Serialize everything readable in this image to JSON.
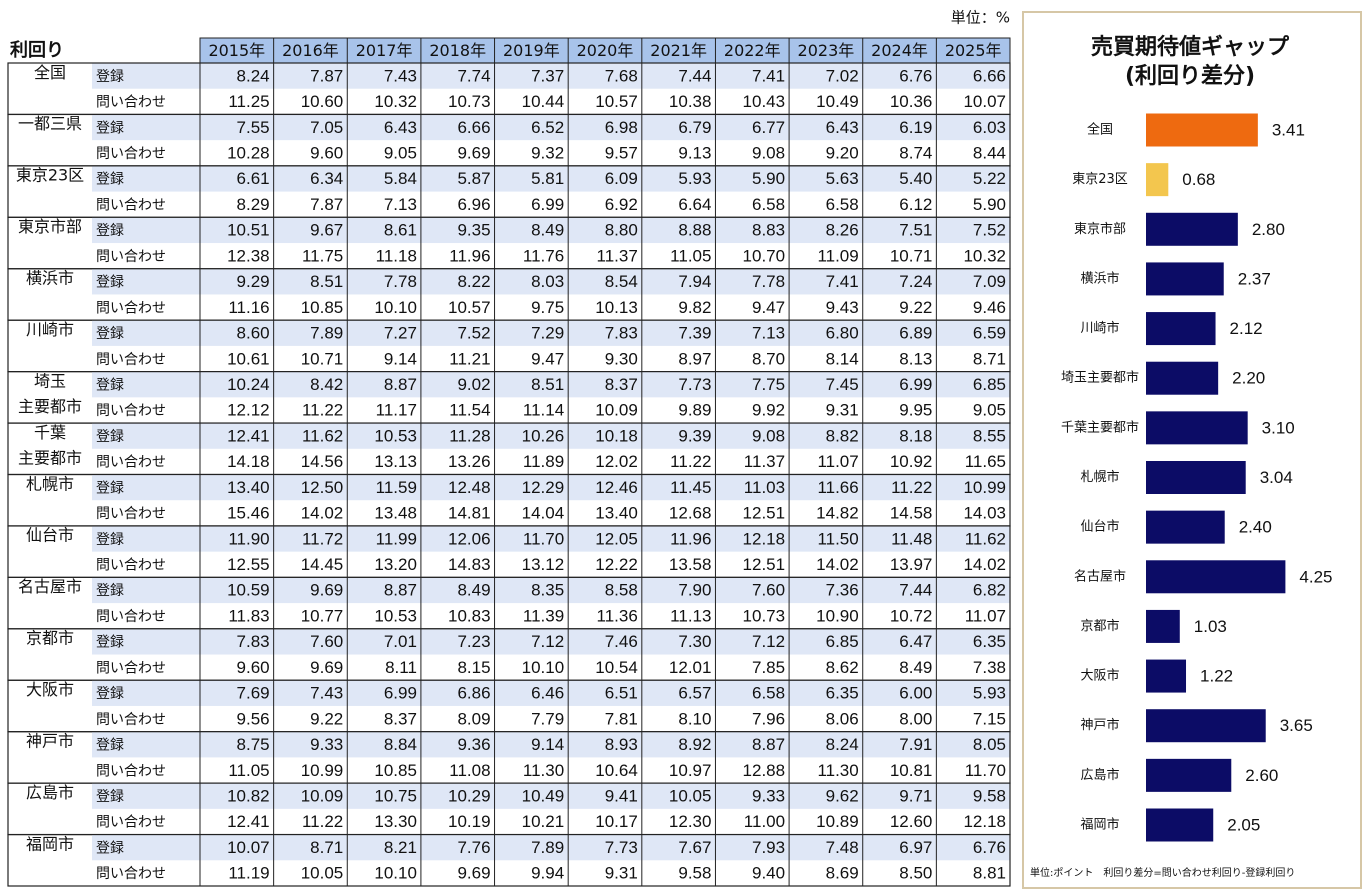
{
  "table": {
    "unit": "単位：%",
    "corner": "利回り",
    "years": [
      "2015年",
      "2016年",
      "2017年",
      "2018年",
      "2019年",
      "2020年",
      "2021年",
      "2022年",
      "2023年",
      "2024年",
      "2025年"
    ],
    "row_labels": [
      "登録",
      "問い合わせ"
    ],
    "regions": [
      {
        "name": [
          "全国"
        ],
        "registered": [
          "8.24",
          "7.87",
          "7.43",
          "7.74",
          "7.37",
          "7.68",
          "7.44",
          "7.41",
          "7.02",
          "6.76",
          "6.66"
        ],
        "inquiry": [
          "11.25",
          "10.60",
          "10.32",
          "10.73",
          "10.44",
          "10.57",
          "10.38",
          "10.43",
          "10.49",
          "10.36",
          "10.07"
        ]
      },
      {
        "name": [
          "一都三県"
        ],
        "registered": [
          "7.55",
          "7.05",
          "6.43",
          "6.66",
          "6.52",
          "6.98",
          "6.79",
          "6.77",
          "6.43",
          "6.19",
          "6.03"
        ],
        "inquiry": [
          "10.28",
          "9.60",
          "9.05",
          "9.69",
          "9.32",
          "9.57",
          "9.13",
          "9.08",
          "9.20",
          "8.74",
          "8.44"
        ]
      },
      {
        "name": [
          "東京23区"
        ],
        "registered": [
          "6.61",
          "6.34",
          "5.84",
          "5.87",
          "5.81",
          "6.09",
          "5.93",
          "5.90",
          "5.63",
          "5.40",
          "5.22"
        ],
        "inquiry": [
          "8.29",
          "7.87",
          "7.13",
          "6.96",
          "6.99",
          "6.92",
          "6.64",
          "6.58",
          "6.58",
          "6.12",
          "5.90"
        ]
      },
      {
        "name": [
          "東京市部"
        ],
        "registered": [
          "10.51",
          "9.67",
          "8.61",
          "9.35",
          "8.49",
          "8.80",
          "8.88",
          "8.83",
          "8.26",
          "7.51",
          "7.52"
        ],
        "inquiry": [
          "12.38",
          "11.75",
          "11.18",
          "11.96",
          "11.76",
          "11.37",
          "11.05",
          "10.70",
          "11.09",
          "10.71",
          "10.32"
        ]
      },
      {
        "name": [
          "横浜市"
        ],
        "registered": [
          "9.29",
          "8.51",
          "7.78",
          "8.22",
          "8.03",
          "8.54",
          "7.94",
          "7.78",
          "7.41",
          "7.24",
          "7.09"
        ],
        "inquiry": [
          "11.16",
          "10.85",
          "10.10",
          "10.57",
          "9.75",
          "10.13",
          "9.82",
          "9.47",
          "9.43",
          "9.22",
          "9.46"
        ]
      },
      {
        "name": [
          "川崎市"
        ],
        "registered": [
          "8.60",
          "7.89",
          "7.27",
          "7.52",
          "7.29",
          "7.83",
          "7.39",
          "7.13",
          "6.80",
          "6.89",
          "6.59"
        ],
        "inquiry": [
          "10.61",
          "10.71",
          "9.14",
          "11.21",
          "9.47",
          "9.30",
          "8.97",
          "8.70",
          "8.14",
          "8.13",
          "8.71"
        ]
      },
      {
        "name": [
          "埼玉",
          "主要都市"
        ],
        "registered": [
          "10.24",
          "8.42",
          "8.87",
          "9.02",
          "8.51",
          "8.37",
          "7.73",
          "7.75",
          "7.45",
          "6.99",
          "6.85"
        ],
        "inquiry": [
          "12.12",
          "11.22",
          "11.17",
          "11.54",
          "11.14",
          "10.09",
          "9.89",
          "9.92",
          "9.31",
          "9.95",
          "9.05"
        ]
      },
      {
        "name": [
          "千葉",
          "主要都市"
        ],
        "registered": [
          "12.41",
          "11.62",
          "10.53",
          "11.28",
          "10.26",
          "10.18",
          "9.39",
          "9.08",
          "8.82",
          "8.18",
          "8.55"
        ],
        "inquiry": [
          "14.18",
          "14.56",
          "13.13",
          "13.26",
          "11.89",
          "12.02",
          "11.22",
          "11.37",
          "11.07",
          "10.92",
          "11.65"
        ]
      },
      {
        "name": [
          "札幌市"
        ],
        "registered": [
          "13.40",
          "12.50",
          "11.59",
          "12.48",
          "12.29",
          "12.46",
          "11.45",
          "11.03",
          "11.66",
          "11.22",
          "10.99"
        ],
        "inquiry": [
          "15.46",
          "14.02",
          "13.48",
          "14.81",
          "14.04",
          "13.40",
          "12.68",
          "12.51",
          "14.82",
          "14.58",
          "14.03"
        ]
      },
      {
        "name": [
          "仙台市"
        ],
        "registered": [
          "11.90",
          "11.72",
          "11.99",
          "12.06",
          "11.70",
          "12.05",
          "11.96",
          "12.18",
          "11.50",
          "11.48",
          "11.62"
        ],
        "inquiry": [
          "12.55",
          "14.45",
          "13.20",
          "14.83",
          "13.12",
          "12.22",
          "13.58",
          "12.51",
          "14.02",
          "13.97",
          "14.02"
        ]
      },
      {
        "name": [
          "名古屋市"
        ],
        "registered": [
          "10.59",
          "9.69",
          "8.87",
          "8.49",
          "8.35",
          "8.58",
          "7.90",
          "7.60",
          "7.36",
          "7.44",
          "6.82"
        ],
        "inquiry": [
          "11.83",
          "10.77",
          "10.53",
          "10.83",
          "11.39",
          "11.36",
          "11.13",
          "10.73",
          "10.90",
          "10.72",
          "11.07"
        ]
      },
      {
        "name": [
          "京都市"
        ],
        "registered": [
          "7.83",
          "7.60",
          "7.01",
          "7.23",
          "7.12",
          "7.46",
          "7.30",
          "7.12",
          "6.85",
          "6.47",
          "6.35"
        ],
        "inquiry": [
          "9.60",
          "9.69",
          "8.11",
          "8.15",
          "10.10",
          "10.54",
          "12.01",
          "7.85",
          "8.62",
          "8.49",
          "7.38"
        ]
      },
      {
        "name": [
          "大阪市"
        ],
        "registered": [
          "7.69",
          "7.43",
          "6.99",
          "6.86",
          "6.46",
          "6.51",
          "6.57",
          "6.58",
          "6.35",
          "6.00",
          "5.93"
        ],
        "inquiry": [
          "9.56",
          "9.22",
          "8.37",
          "8.09",
          "7.79",
          "7.81",
          "8.10",
          "7.96",
          "8.06",
          "8.00",
          "7.15"
        ]
      },
      {
        "name": [
          "神戸市"
        ],
        "registered": [
          "8.75",
          "9.33",
          "8.84",
          "9.36",
          "9.14",
          "8.93",
          "8.92",
          "8.87",
          "8.24",
          "7.91",
          "8.05"
        ],
        "inquiry": [
          "11.05",
          "10.99",
          "10.85",
          "11.08",
          "11.30",
          "10.64",
          "10.97",
          "12.88",
          "11.30",
          "10.81",
          "11.70"
        ]
      },
      {
        "name": [
          "広島市"
        ],
        "registered": [
          "10.82",
          "10.09",
          "10.75",
          "10.29",
          "10.49",
          "9.41",
          "10.05",
          "9.33",
          "9.62",
          "9.71",
          "9.58"
        ],
        "inquiry": [
          "12.41",
          "11.22",
          "13.30",
          "10.19",
          "10.21",
          "10.17",
          "12.30",
          "11.00",
          "10.89",
          "12.60",
          "12.18"
        ]
      },
      {
        "name": [
          "福岡市"
        ],
        "registered": [
          "10.07",
          "8.71",
          "8.21",
          "7.76",
          "7.89",
          "7.73",
          "7.67",
          "7.93",
          "7.48",
          "6.97",
          "6.76"
        ],
        "inquiry": [
          "11.19",
          "10.05",
          "10.10",
          "9.69",
          "9.94",
          "9.31",
          "9.58",
          "9.40",
          "8.69",
          "8.50",
          "8.81"
        ]
      }
    ]
  },
  "chart_data": {
    "type": "hbar",
    "title": "売買期待値ギャップ",
    "subtitle": "(利回り差分)",
    "footnote": "単位:ポイント　利回り差分=問い合わせ利回り-登録利回り",
    "categories": [
      "全国",
      "東京23区",
      "東京市部",
      "横浜市",
      "川崎市",
      "埼玉主要都市",
      "千葉主要都市",
      "札幌市",
      "仙台市",
      "名古屋市",
      "京都市",
      "大阪市",
      "神戸市",
      "広島市",
      "福岡市"
    ],
    "values": [
      3.41,
      0.68,
      2.8,
      2.37,
      2.12,
      2.2,
      3.1,
      3.04,
      2.4,
      4.25,
      1.03,
      1.22,
      3.65,
      2.6,
      2.05
    ],
    "value_labels": [
      "3.41",
      "0.68",
      "2.80",
      "2.37",
      "2.12",
      "2.20",
      "3.10",
      "3.04",
      "2.40",
      "4.25",
      "1.03",
      "1.22",
      "3.65",
      "2.60",
      "2.05"
    ],
    "colors": [
      "#ee6a10",
      "#f3c64e",
      "#0c0c66",
      "#0c0c66",
      "#0c0c66",
      "#0c0c66",
      "#0c0c66",
      "#0c0c66",
      "#0c0c66",
      "#0c0c66",
      "#0c0c66",
      "#0c0c66",
      "#0c0c66",
      "#0c0c66",
      "#0c0c66"
    ],
    "xlim": [
      0,
      5
    ]
  }
}
